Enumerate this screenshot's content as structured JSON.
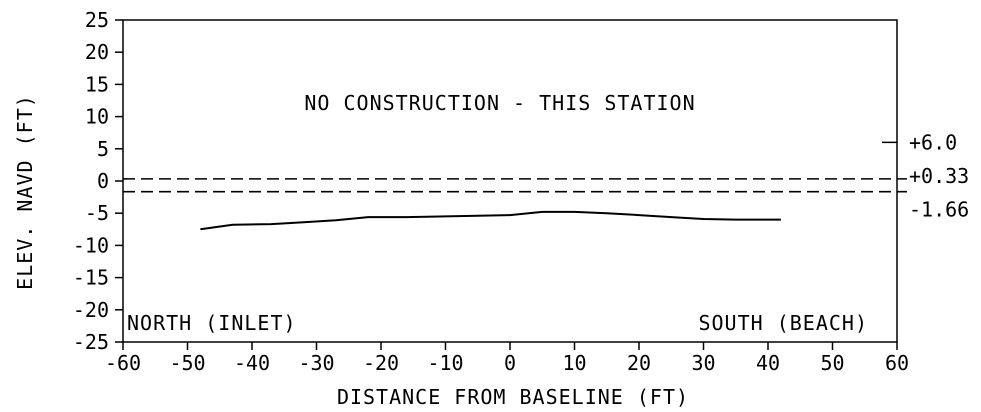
{
  "chart_data": {
    "type": "line",
    "xlabel": "DISTANCE FROM BASELINE (FT)",
    "ylabel": "ELEV. NAVD (FT)",
    "xlim": [
      -60,
      60
    ],
    "ylim": [
      -25,
      25
    ],
    "xticks": [
      -60,
      -50,
      -40,
      -30,
      -20,
      -10,
      0,
      10,
      20,
      30,
      40,
      50,
      60
    ],
    "yticks": [
      -25,
      -20,
      -15,
      -10,
      -5,
      0,
      5,
      10,
      15,
      20,
      25
    ],
    "xtick_labels": [
      "-60",
      "-50",
      "-40",
      "-30",
      "-20",
      "-10",
      "0",
      "10",
      "20",
      "30",
      "40",
      "50",
      "60"
    ],
    "ytick_labels": [
      "-25",
      "-20",
      "-15",
      "-10",
      "-5",
      "0",
      "5",
      "10",
      "15",
      "20",
      "25"
    ],
    "grid": false,
    "series": [
      {
        "x": [
          -48,
          -43,
          -37,
          -32,
          -27,
          -22,
          -16,
          -10,
          -5,
          0,
          5,
          10,
          15,
          20,
          25,
          30,
          35,
          42
        ],
        "y": [
          -7.5,
          -6.8,
          -6.7,
          -6.4,
          -6.1,
          -5.6,
          -5.6,
          -5.5,
          -5.4,
          -5.3,
          -4.8,
          -4.8,
          -5.0,
          -5.3,
          -5.6,
          -5.9,
          -6.0,
          -6.0
        ]
      }
    ],
    "reference_lines": [
      {
        "y": 0.33,
        "label": "+0.33",
        "style": "dashed"
      },
      {
        "y": -1.66,
        "label": "-1.66",
        "style": "dashed"
      }
    ],
    "right_marks": [
      {
        "y": 6.0,
        "label": "+6.0"
      }
    ],
    "annotations": {
      "center": "NO CONSTRUCTION - THIS STATION",
      "left": "NORTH (INLET)",
      "right": "SOUTH (BEACH)"
    }
  }
}
